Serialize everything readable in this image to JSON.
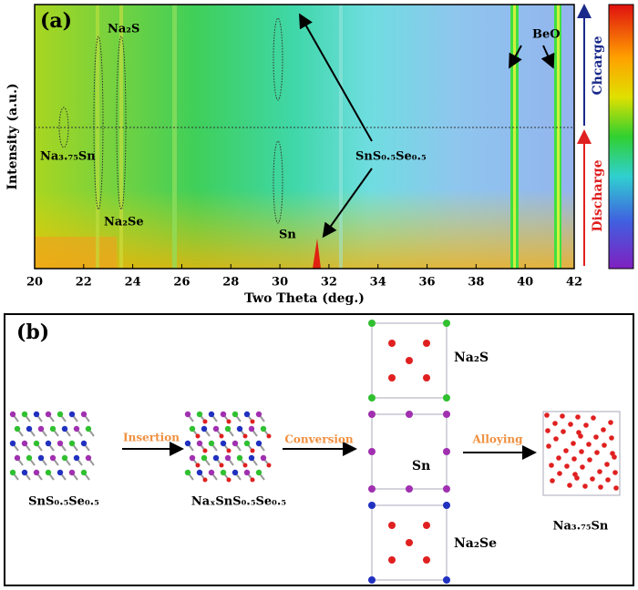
{
  "panel_a": {
    "label": "(a)",
    "xlabel": "Two Theta (deg.)",
    "ylabel": "Intensity (a.u.)",
    "xlim": [
      20,
      42
    ],
    "xticks": [
      20,
      22,
      24,
      26,
      28,
      30,
      32,
      34,
      36,
      38,
      40,
      42
    ],
    "annotations": [
      "Na₂S",
      "Na₃.₇₅Sn",
      "Na₂Se",
      "Sn",
      "SnS₀.₅Se₀.₅",
      "BeO"
    ],
    "charge": "Chcarge",
    "discharge": "Discharge"
  },
  "panel_b": {
    "label": "(b)",
    "structures": [
      "SnS₀.₅Se₀.₅",
      "NaₓSnS₀.₅Se₀.₅",
      "Na₃.₇₅Sn"
    ],
    "steps": [
      "Insertion",
      "Conversion",
      "Alloying"
    ],
    "phases": [
      "Na₂S",
      "Sn",
      "Na₂Se"
    ]
  }
}
